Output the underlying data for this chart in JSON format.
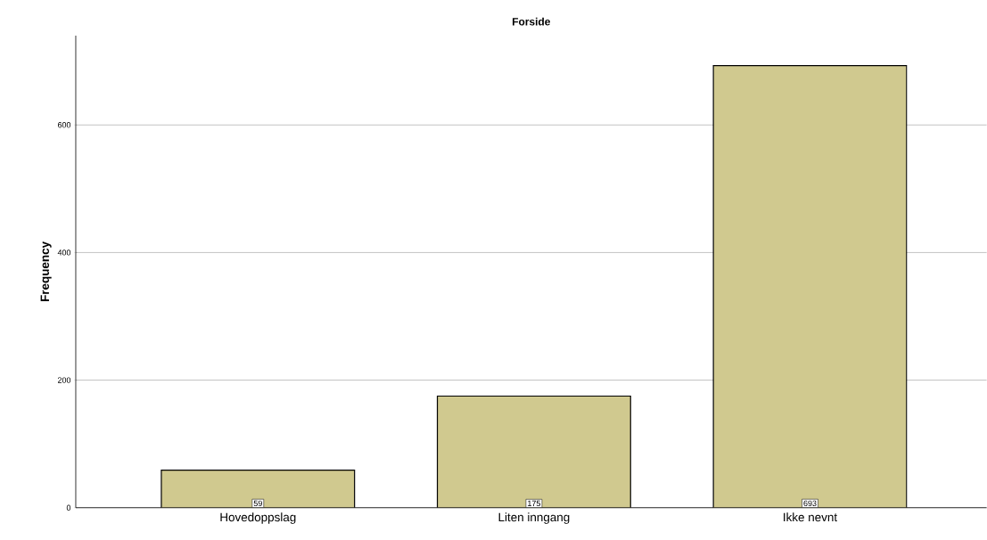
{
  "chart_data": {
    "type": "bar",
    "title": "Forside",
    "ylabel": "Frequency",
    "categories": [
      "Hovedoppslag",
      "Liten inngang",
      "Ikke nevnt"
    ],
    "values": [
      59,
      175,
      693
    ],
    "color": "#d0c98f",
    "ylim": [
      0,
      740
    ],
    "yticks": [
      0,
      200,
      400,
      600
    ],
    "grid": "y",
    "data_labels": true
  }
}
